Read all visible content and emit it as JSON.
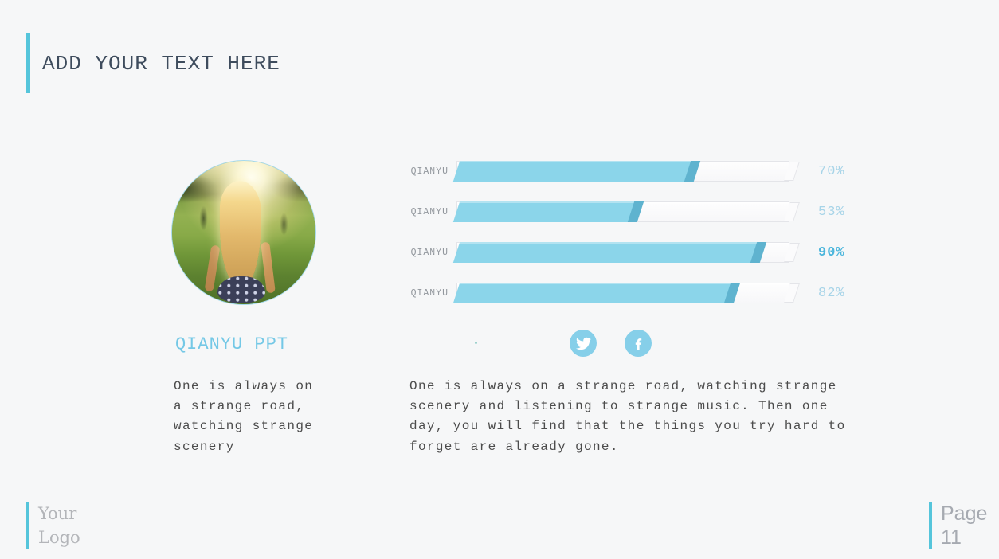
{
  "theme": {
    "bg": "#f6f7f8",
    "accent": "#55c5db",
    "title_color": "#3e4c5d",
    "bar_fill": "#8bd5ea",
    "bar_side": "#5fb3cf",
    "value_color": "#a7d4e8",
    "value_em_color": "#4cb6dc",
    "label_color": "#92979d",
    "text_color": "#4c4c4c",
    "name_color": "#74c8e6",
    "social_color": "#86cfe9"
  },
  "slide": {
    "title": "ADD YOUR TEXT HERE"
  },
  "profile": {
    "name": "QIANYU PPT",
    "photo": "girl-with-long-blonde-hair-in-sunlit-green-field",
    "caption_lines": [
      "One is always on",
      "a strange road,",
      "watching strange",
      "scenery"
    ]
  },
  "chart_data": {
    "type": "bar",
    "orientation": "horizontal",
    "categories": [
      "QIANYU",
      "QIANYU",
      "QIANYU",
      "QIANYU"
    ],
    "values": [
      70,
      53,
      90,
      82
    ],
    "value_labels": [
      "70%",
      "53%",
      "90%",
      "82%"
    ],
    "emphasized_index": 2,
    "xlim": [
      0,
      100
    ],
    "grid": false,
    "legend": false,
    "style": "3d-beveled-bars"
  },
  "social": {
    "icons": [
      "twitter",
      "facebook"
    ]
  },
  "description_lines": [
    "One is always on a strange road, watching strange",
    "scenery and listening to strange music. Then one",
    "day, you will find that the things you try hard to",
    "forget are already gone."
  ],
  "footer": {
    "logo_line1": "Your",
    "logo_line2": "Logo",
    "page_label": "Page",
    "page_number": "11"
  }
}
